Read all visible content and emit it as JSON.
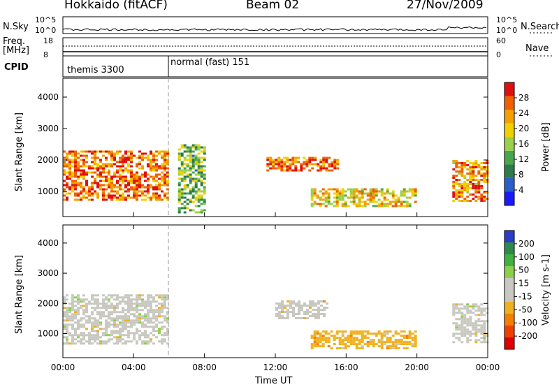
{
  "header": {
    "station": "Hokkaido (fitACF)",
    "beam": "Beam 02",
    "date": "27/Nov/2009"
  },
  "strip_panels": {
    "nsky_label": "N.Sky",
    "nsky_ticks": [
      "10^5",
      "10^0"
    ],
    "nsearch_label": "N.Search",
    "nsearch_ticks": [
      "10^5",
      "10^0"
    ],
    "freq_label_line1": "Freq.",
    "freq_label_line2": "[MHz]",
    "freq_ticks": [
      "18",
      "8"
    ],
    "nave_label": "Nave",
    "nave_ticks": [
      "60",
      "0"
    ],
    "cpid_label": "CPID",
    "cpid_segments": [
      {
        "label": "themis 3300",
        "start_hour": 0
      },
      {
        "label": "normal (fast) 151",
        "start_hour": 6
      }
    ]
  },
  "chart_data": [
    {
      "type": "heatmap",
      "title": "Power",
      "xlabel": "",
      "ylabel": "Slant Range [km]",
      "xlim": [
        0,
        24
      ],
      "ylim": [
        200,
        4600
      ],
      "yticks": [
        1000,
        2000,
        3000,
        4000
      ],
      "colorbar": {
        "label": "Power [dB]",
        "ticks": [
          "28",
          "24",
          "20",
          "16",
          "12",
          "8",
          "4"
        ],
        "range": [
          0,
          32
        ],
        "colors": [
          "#1a1aff",
          "#2a5fc8",
          "#2e7a4a",
          "#4aa64a",
          "#9ad04a",
          "#f0d000",
          "#f5a000",
          "#f06000",
          "#e01010"
        ]
      },
      "dominant_echo_bands_km": [
        {
          "start_hour": 0.0,
          "end_hour": 6.0,
          "range_min": 700,
          "range_max": 2300,
          "level_db": 26
        },
        {
          "start_hour": 6.5,
          "end_hour": 8.0,
          "range_min": 300,
          "range_max": 2500,
          "level_db": 14
        },
        {
          "start_hour": 11.5,
          "end_hour": 15.5,
          "range_min": 1650,
          "range_max": 2100,
          "level_db": 26
        },
        {
          "start_hour": 14.0,
          "end_hour": 20.0,
          "range_min": 500,
          "range_max": 1100,
          "level_db": 20
        },
        {
          "start_hour": 22.0,
          "end_hour": 24.0,
          "range_min": 700,
          "range_max": 2000,
          "level_db": 24
        }
      ]
    },
    {
      "type": "heatmap",
      "title": "Velocity",
      "xlabel": "Time UT",
      "ylabel": "Slant Range [km]",
      "xlim": [
        0,
        24
      ],
      "ylim": [
        200,
        4600
      ],
      "yticks": [
        1000,
        2000,
        3000,
        4000
      ],
      "xticks": [
        "00:00",
        "04:00",
        "08:00",
        "12:00",
        "16:00",
        "20:00",
        "00:00"
      ],
      "colorbar": {
        "label": "Velocity [m s-1]",
        "ticks": [
          "200",
          "100",
          "50",
          "15",
          "-15",
          "-50",
          "-100",
          "-200"
        ],
        "range": [
          -250,
          250
        ],
        "colors": [
          "#e00000",
          "#f04000",
          "#f58000",
          "#f0b020",
          "#c8c8c0",
          "#c8c8c0",
          "#8cd04a",
          "#40b040",
          "#2e8a4a",
          "#2a3cc8"
        ]
      },
      "dominant_echo_bands_km": [
        {
          "start_hour": 0.0,
          "end_hour": 6.0,
          "range_min": 700,
          "range_max": 2300,
          "velocity_ms": 0
        },
        {
          "start_hour": 14.0,
          "end_hour": 20.0,
          "range_min": 500,
          "range_max": 1100,
          "velocity_ms": -60
        },
        {
          "start_hour": 12.0,
          "end_hour": 15.0,
          "range_min": 1500,
          "range_max": 2100,
          "velocity_ms": -40
        },
        {
          "start_hour": 22.0,
          "end_hour": 24.0,
          "range_min": 700,
          "range_max": 2000,
          "velocity_ms": 0
        }
      ]
    }
  ]
}
